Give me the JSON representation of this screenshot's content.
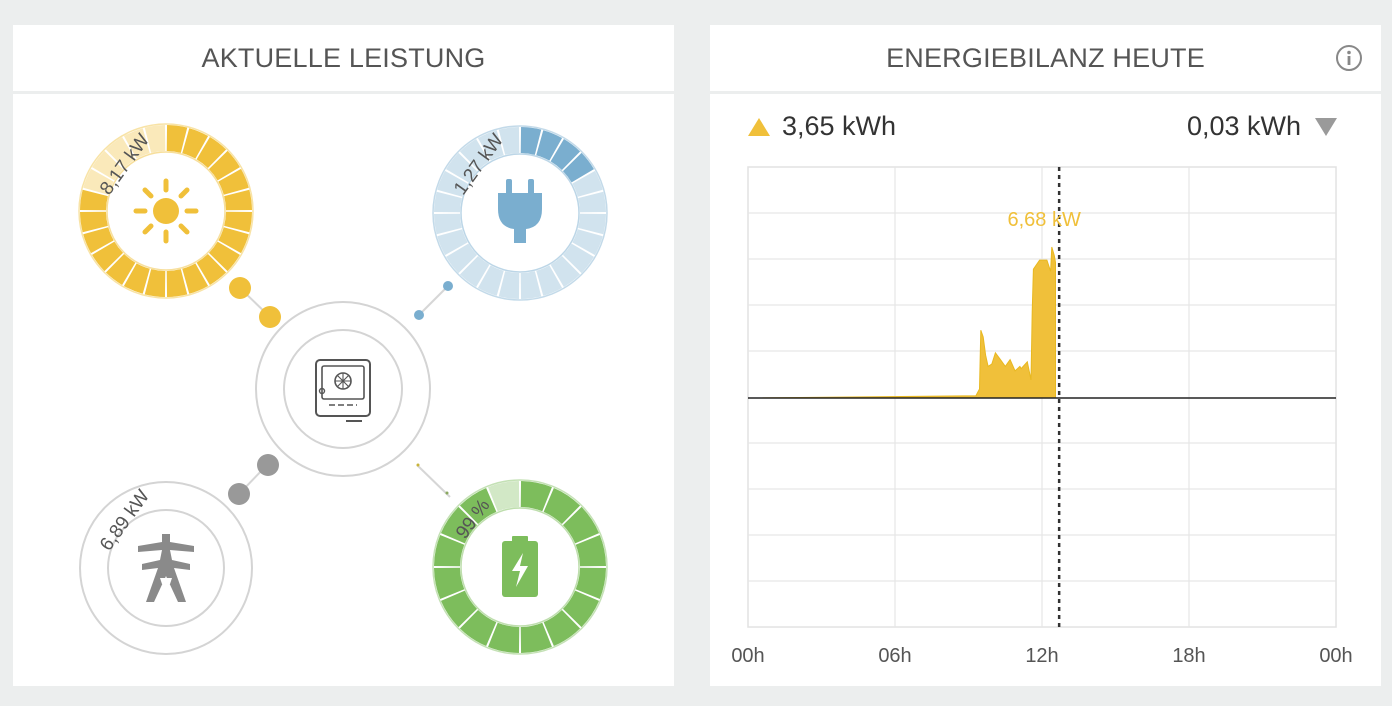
{
  "left_card": {
    "title": "AKTUELLE LEISTUNG",
    "pv": {
      "label": "8,17 kW",
      "icon": "sun-icon",
      "color": "#f0c03a",
      "fill_fraction": 0.82
    },
    "consumption": {
      "label": "1,27 kW",
      "icon": "plug-icon",
      "color": "#7aaecf",
      "fill_fraction": 0.2
    },
    "grid": {
      "label": "6,89 kW",
      "icon": "power-tower-icon",
      "color": "#9a9a9a"
    },
    "battery": {
      "label": "99 %",
      "icon": "battery-icon",
      "color": "#7dbd5c",
      "fill_fraction": 0.99
    },
    "inverter": {
      "icon": "inverter-icon"
    }
  },
  "right_card": {
    "title": "ENERGIEBILANZ HEUTE",
    "info_icon": "info-icon",
    "produced": "3,65 kWh",
    "consumed": "0,03 kWh",
    "peak_label": "6,68 kW",
    "x_ticks": [
      "00h",
      "06h",
      "12h",
      "18h",
      "00h"
    ]
  },
  "chart_data": {
    "type": "area",
    "title": "",
    "xlabel": "",
    "ylabel": "",
    "x_tick_labels": [
      "00h",
      "06h",
      "12h",
      "18h",
      "00h"
    ],
    "xlim_hours": [
      0,
      24
    ],
    "current_time_hours": 12.7,
    "annotation": "6,68 kW",
    "series": [
      {
        "color": "#f0c03a",
        "x_hours": [
          0,
          9.3,
          9.45,
          9.5,
          9.6,
          9.7,
          9.8,
          9.95,
          10.1,
          10.3,
          10.5,
          10.7,
          10.9,
          11.1,
          11.15,
          11.4,
          11.55,
          11.6,
          11.65,
          11.9,
          12.2,
          12.35,
          12.4,
          12.5,
          12.55
        ],
        "y_kw": [
          0,
          0.1,
          0.4,
          3.0,
          2.7,
          1.9,
          1.4,
          1.5,
          2.0,
          1.7,
          1.4,
          1.7,
          1.2,
          1.4,
          1.3,
          1.6,
          0.8,
          3.8,
          5.7,
          6.1,
          6.1,
          5.6,
          6.68,
          6.3,
          6.0
        ]
      }
    ]
  }
}
